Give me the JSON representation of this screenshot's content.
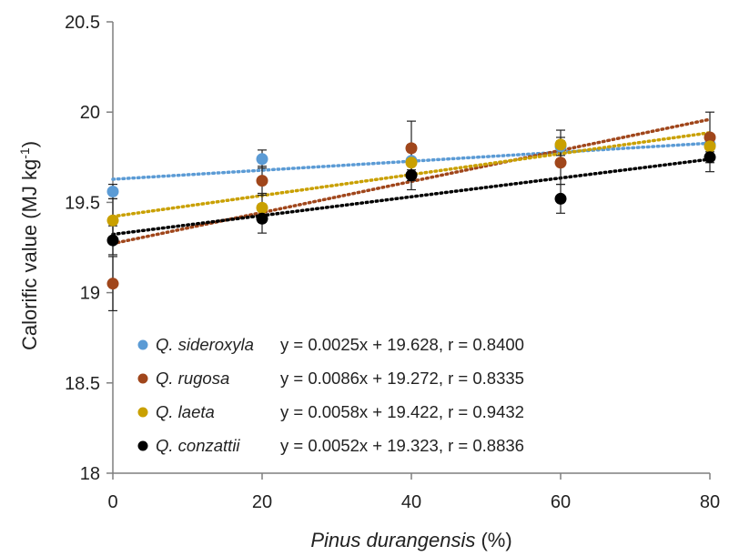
{
  "chart_data": {
    "type": "scatter",
    "xlabel": {
      "italic": "Pinus durangensis",
      "rest": " (%)"
    },
    "ylabel": {
      "main": "Calorific value (MJ kg",
      "sup": "-1",
      "close": ")"
    },
    "xlim": [
      0,
      80
    ],
    "ylim": [
      18,
      20.5
    ],
    "x_ticks": [
      "0",
      "20",
      "40",
      "60",
      "80"
    ],
    "y_ticks": [
      "18",
      "18.5",
      "19",
      "19.5",
      "20",
      "20.5"
    ],
    "grid": false,
    "legend_position": "bottom-left",
    "x": [
      0,
      20,
      40,
      60,
      80
    ],
    "series": [
      {
        "name": "Q. sideroxyla",
        "color": "#5b9bd5",
        "values": [
          19.56,
          19.74,
          19.73,
          19.81,
          19.82
        ],
        "errors": [
          0.04,
          0.05,
          0.05,
          0.05,
          0.04
        ],
        "equation": "y = 0.0025x + 19.628, r = 0.8400",
        "slope": 0.0025,
        "intercept": 19.628
      },
      {
        "name": "Q. rugosa",
        "color": "#a0461b",
        "values": [
          19.05,
          19.62,
          19.8,
          19.72,
          19.86
        ],
        "errors": [
          0.15,
          0.08,
          0.15,
          0.12,
          0.14
        ],
        "equation": "y = 0.0086x + 19.272, r = 0.8335",
        "slope": 0.0086,
        "intercept": 19.272
      },
      {
        "name": "Q. laeta",
        "color": "#c9a000",
        "values": [
          19.4,
          19.47,
          19.72,
          19.82,
          19.81
        ],
        "errors": [
          0.12,
          0.08,
          0.1,
          0.08,
          0.06
        ],
        "equation": "y = 0.0058x + 19.422, r = 0.9432",
        "slope": 0.0058,
        "intercept": 19.422
      },
      {
        "name": "Q. conzattii",
        "color": "#000000",
        "values": [
          19.29,
          19.41,
          19.65,
          19.52,
          19.75
        ],
        "errors": [
          0.08,
          0.08,
          0.08,
          0.08,
          0.08
        ],
        "equation": "y = 0.0052x + 19.323, r = 0.8836",
        "slope": 0.0052,
        "intercept": 19.323
      }
    ]
  }
}
